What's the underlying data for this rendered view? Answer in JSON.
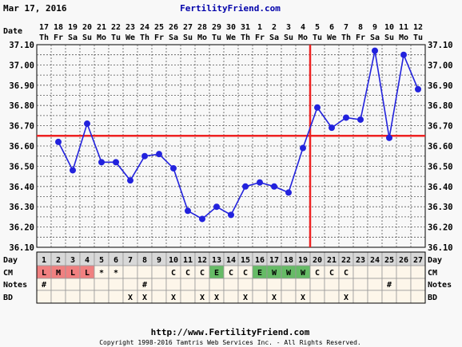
{
  "header": {
    "date": "Mar 17, 2016",
    "site": "FertilityFriend.com"
  },
  "footer": {
    "url": "http://www.FertilityFriend.com",
    "copyright": "Copyright 1998-2016 Tamtris Web Services Inc. - All Rights Reserved."
  },
  "row_labels": {
    "date": "Date",
    "day": "Day",
    "cm": "CM",
    "notes": "Notes",
    "bd": "BD"
  },
  "chart_data": {
    "type": "line",
    "dates": [
      "17",
      "18",
      "19",
      "20",
      "21",
      "22",
      "23",
      "24",
      "25",
      "26",
      "27",
      "28",
      "29",
      "30",
      "31",
      "1",
      "2",
      "3",
      "4",
      "5",
      "6",
      "7",
      "8",
      "9",
      "10",
      "11",
      "12"
    ],
    "weekdays": [
      "Th",
      "Fr",
      "Sa",
      "Su",
      "Mo",
      "Tu",
      "We",
      "Th",
      "Fr",
      "Sa",
      "Su",
      "Mo",
      "Tu",
      "We",
      "Th",
      "Fr",
      "Sa",
      "Su",
      "Mo",
      "Tu",
      "We",
      "Th",
      "Fr",
      "Sa",
      "Su",
      "Mo",
      "Tu"
    ],
    "days": [
      1,
      2,
      3,
      4,
      5,
      6,
      7,
      8,
      9,
      10,
      11,
      12,
      13,
      14,
      15,
      16,
      17,
      18,
      19,
      20,
      21,
      22,
      23,
      24,
      25,
      26,
      27
    ],
    "temps": [
      null,
      36.62,
      36.48,
      36.71,
      36.52,
      36.52,
      36.43,
      36.55,
      36.56,
      36.49,
      36.28,
      36.24,
      36.3,
      36.26,
      36.4,
      36.42,
      36.4,
      36.37,
      36.59,
      36.79,
      36.69,
      36.74,
      36.73,
      37.07,
      36.64,
      37.05,
      36.88
    ],
    "yticks": [
      "37.10",
      "37.00",
      "36.90",
      "36.80",
      "36.70",
      "36.60",
      "36.50",
      "36.40",
      "36.30",
      "36.20",
      "36.10"
    ],
    "ylim": [
      36.1,
      37.1
    ],
    "coverline": 36.65,
    "ovulation_day": 19,
    "line_color": "#2222dd",
    "coverline_color": "#ee2222",
    "cm": [
      "L",
      "M",
      "L",
      "L",
      "*",
      "*",
      "",
      "",
      "",
      "C",
      "C",
      "C",
      "E",
      "C",
      "C",
      "E",
      "W",
      "W",
      "W",
      "C",
      "C",
      "C",
      "",
      "",
      "",
      "",
      ""
    ],
    "notes": [
      "#",
      "",
      "",
      "",
      "",
      "",
      "",
      "#",
      "",
      "",
      "",
      "",
      "",
      "",
      "",
      "",
      "",
      "",
      "",
      "",
      "",
      "",
      "",
      "",
      "#",
      "",
      ""
    ],
    "bd": [
      "",
      "",
      "",
      "",
      "",
      "",
      "X",
      "X",
      "",
      "X",
      "",
      "X",
      "X",
      "",
      "X",
      "",
      "X",
      "",
      "X",
      "",
      "",
      "X",
      "",
      "",
      "",
      "",
      ""
    ]
  },
  "colors": {
    "period": "#f08080",
    "egg_white": "#66bb66",
    "cell_bg": "#fdf6ea",
    "day_bg": "#d8d8d8"
  }
}
